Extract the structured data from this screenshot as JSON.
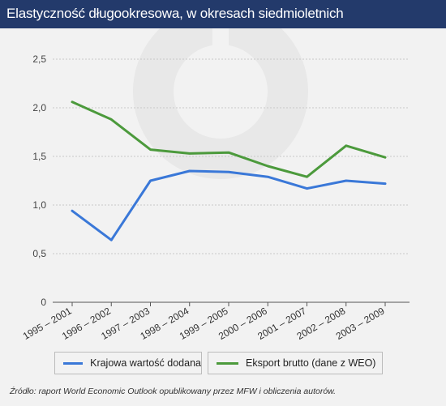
{
  "header": {
    "title": "Elastyczność długookresowa, w okresach siedmioletnich"
  },
  "chart_data": {
    "type": "line",
    "title": "Elastyczność długookresowa, w okresach siedmioletnich",
    "xlabel": "",
    "ylabel": "",
    "ylim": [
      0,
      2.5
    ],
    "yticks": [
      "0",
      "0,5",
      "1,0",
      "1,5",
      "2,0",
      "2,5"
    ],
    "categories": [
      "1995 – 2001",
      "1996 – 2002",
      "1997 – 2003",
      "1998 – 2004",
      "1999 – 2005",
      "2000 – 2006",
      "2001 – 2007",
      "2002 – 2008",
      "2003 – 2009"
    ],
    "grid": true,
    "legend_position": "bottom",
    "series": [
      {
        "name": "Krajowa wartość dodana",
        "color": "#3a78d8",
        "values": [
          0.94,
          0.64,
          1.25,
          1.35,
          1.34,
          1.29,
          1.17,
          1.25,
          1.22
        ]
      },
      {
        "name": "Eksport brutto (dane z WEO)",
        "color": "#4c9a3c",
        "values": [
          2.06,
          1.88,
          1.57,
          1.53,
          1.54,
          1.4,
          1.29,
          1.61,
          1.49
        ]
      }
    ]
  },
  "source": "Źródło: raport World Economic Outlook opublikowany przez MFW i obliczenia autorów."
}
